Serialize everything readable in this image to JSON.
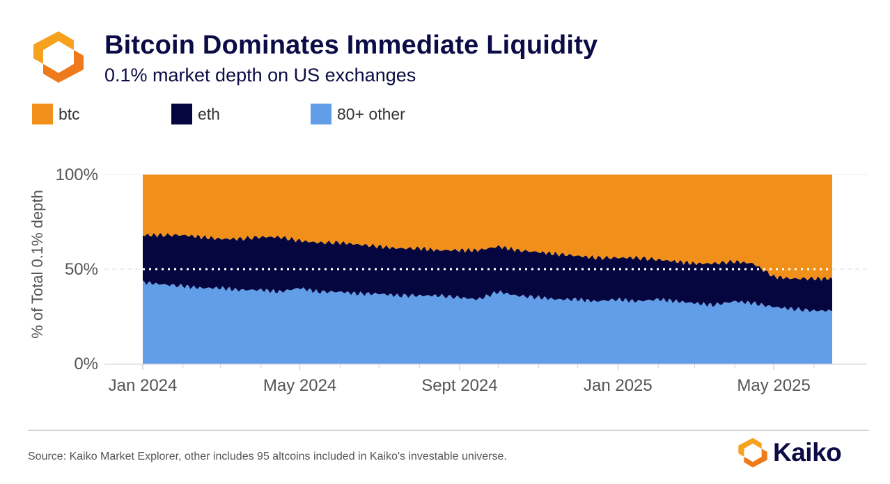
{
  "header": {
    "title": "Bitcoin Dominates Immediate Liquidity",
    "subtitle": "0.1% market depth on US exchanges",
    "logo_icon": "kaiko-logo-icon"
  },
  "legend": [
    {
      "label": "btc",
      "color": "#F0901A"
    },
    {
      "label": "eth",
      "color": "#05053F"
    },
    {
      "label": "80+ other",
      "color": "#629EE8"
    }
  ],
  "footer": {
    "source": "Source: Kaiko Market Explorer, other includes 95 altcoins included in Kaiko's investable universe.",
    "brand": "Kaiko"
  },
  "chart_data": {
    "type": "area",
    "stacked": true,
    "normalized": true,
    "ylabel": "% of Total 0.1% depth",
    "ylim": [
      0,
      100
    ],
    "yticks": [
      "0%",
      "50%",
      "100%"
    ],
    "xticks": [
      "Jan 2024",
      "May 2024",
      "Sept 2024",
      "Jan 2025",
      "May 2025"
    ],
    "xrange": [
      "2024-01-01",
      "2025-06-15"
    ],
    "reference_line": {
      "y": 50,
      "style": "dotted",
      "color": "#FFFFFF"
    },
    "grid": true,
    "x": [
      "2024-01-01",
      "2024-01-15",
      "2024-02-01",
      "2024-02-15",
      "2024-03-01",
      "2024-03-15",
      "2024-04-01",
      "2024-04-15",
      "2024-05-01",
      "2024-05-15",
      "2024-06-01",
      "2024-06-15",
      "2024-07-01",
      "2024-07-15",
      "2024-08-01",
      "2024-08-15",
      "2024-09-01",
      "2024-09-15",
      "2024-10-01",
      "2024-10-15",
      "2024-11-01",
      "2024-11-15",
      "2024-12-01",
      "2024-12-15",
      "2025-01-01",
      "2025-01-15",
      "2025-02-01",
      "2025-02-15",
      "2025-03-01",
      "2025-03-15",
      "2025-04-01",
      "2025-04-15",
      "2025-05-01",
      "2025-05-15",
      "2025-06-01",
      "2025-06-15"
    ],
    "series": [
      {
        "name": "80+ other",
        "color": "#629EE8",
        "values": [
          43,
          42,
          41,
          40,
          40,
          39,
          39,
          38,
          40,
          38,
          38,
          37,
          37,
          36,
          36,
          36,
          35,
          34,
          38,
          36,
          35,
          34,
          34,
          33,
          34,
          33,
          34,
          33,
          32,
          31,
          33,
          32,
          30,
          29,
          28,
          28
        ]
      },
      {
        "name": "eth",
        "color": "#05053F",
        "values": [
          25,
          26,
          27,
          27,
          26,
          27,
          28,
          29,
          25,
          26,
          26,
          26,
          25,
          25,
          25,
          24,
          25,
          26,
          24,
          24,
          24,
          24,
          23,
          23,
          22,
          23,
          21,
          21,
          21,
          22,
          21,
          21,
          16,
          16,
          17,
          17
        ]
      },
      {
        "name": "btc",
        "color": "#F0901A",
        "values": [
          32,
          32,
          32,
          33,
          34,
          34,
          33,
          33,
          35,
          36,
          36,
          37,
          38,
          39,
          39,
          40,
          40,
          40,
          38,
          40,
          41,
          42,
          43,
          44,
          44,
          44,
          45,
          46,
          47,
          47,
          46,
          47,
          54,
          55,
          55,
          55
        ]
      }
    ]
  }
}
